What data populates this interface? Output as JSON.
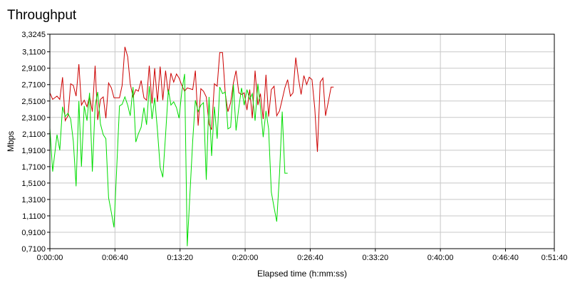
{
  "chart_data": {
    "type": "line",
    "title": "Throughput",
    "xlabel": "Elapsed time (h:mm:ss)",
    "ylabel": "Mbps",
    "grid": true,
    "xlim_seconds": [
      0,
      3100
    ],
    "ylim": [
      0.71,
      3.3245
    ],
    "x_ticks": [
      {
        "value": 0,
        "label": "0:00:00"
      },
      {
        "value": 400,
        "label": "0:06:40"
      },
      {
        "value": 800,
        "label": "0:13:20"
      },
      {
        "value": 1200,
        "label": "0:20:00"
      },
      {
        "value": 1600,
        "label": "0:26:40"
      },
      {
        "value": 2000,
        "label": "0:33:20"
      },
      {
        "value": 2400,
        "label": "0:40:00"
      },
      {
        "value": 2800,
        "label": "0:46:40"
      },
      {
        "value": 3100,
        "label": "0:51:40"
      }
    ],
    "y_ticks": [
      {
        "value": 0.71,
        "label": "0,7100"
      },
      {
        "value": 0.91,
        "label": "0,9100"
      },
      {
        "value": 1.11,
        "label": "1,1100"
      },
      {
        "value": 1.31,
        "label": "1,3100"
      },
      {
        "value": 1.51,
        "label": "1,5100"
      },
      {
        "value": 1.71,
        "label": "1,7100"
      },
      {
        "value": 1.91,
        "label": "1,9100"
      },
      {
        "value": 2.11,
        "label": "2,1100"
      },
      {
        "value": 2.31,
        "label": "2,3100"
      },
      {
        "value": 2.51,
        "label": "2,5100"
      },
      {
        "value": 2.71,
        "label": "2,7100"
      },
      {
        "value": 2.91,
        "label": "2,9100"
      },
      {
        "value": 3.11,
        "label": "3,1100"
      },
      {
        "value": 3.3245,
        "label": "3,3245"
      }
    ],
    "series": [
      {
        "color": "#cc0000",
        "points": [
          [
            0,
            2.61
          ],
          [
            17,
            2.53
          ],
          [
            44,
            2.57
          ],
          [
            61,
            2.53
          ],
          [
            78,
            2.8
          ],
          [
            94,
            2.27
          ],
          [
            111,
            2.33
          ],
          [
            128,
            2.72
          ],
          [
            144,
            2.7
          ],
          [
            161,
            2.57
          ],
          [
            178,
            2.96
          ],
          [
            194,
            2.46
          ],
          [
            211,
            2.52
          ],
          [
            228,
            2.44
          ],
          [
            244,
            2.57
          ],
          [
            261,
            2.38
          ],
          [
            278,
            2.94
          ],
          [
            294,
            2.28
          ],
          [
            311,
            2.53
          ],
          [
            328,
            2.56
          ],
          [
            344,
            2.3
          ],
          [
            361,
            2.73
          ],
          [
            378,
            2.67
          ],
          [
            394,
            2.55
          ],
          [
            411,
            2.55
          ],
          [
            428,
            2.55
          ],
          [
            444,
            2.7
          ],
          [
            461,
            3.17
          ],
          [
            478,
            3.05
          ],
          [
            494,
            2.72
          ],
          [
            511,
            2.56
          ],
          [
            528,
            2.65
          ],
          [
            544,
            2.63
          ],
          [
            561,
            2.76
          ],
          [
            578,
            2.55
          ],
          [
            594,
            2.52
          ],
          [
            611,
            2.94
          ],
          [
            628,
            2.48
          ],
          [
            644,
            2.91
          ],
          [
            661,
            2.5
          ],
          [
            678,
            2.93
          ],
          [
            694,
            2.52
          ],
          [
            711,
            2.88
          ],
          [
            728,
            2.59
          ],
          [
            744,
            2.85
          ],
          [
            761,
            2.74
          ],
          [
            778,
            2.84
          ],
          [
            794,
            2.79
          ],
          [
            811,
            2.7
          ],
          [
            828,
            2.63
          ],
          [
            844,
            2.67
          ],
          [
            861,
            2.66
          ],
          [
            878,
            2.65
          ],
          [
            894,
            2.88
          ],
          [
            911,
            2.21
          ],
          [
            928,
            2.66
          ],
          [
            944,
            2.63
          ],
          [
            961,
            2.56
          ],
          [
            978,
            2.23
          ],
          [
            994,
            2.16
          ],
          [
            1011,
            2.72
          ],
          [
            1028,
            2.69
          ],
          [
            1044,
            3.1
          ],
          [
            1061,
            3.1
          ],
          [
            1078,
            2.6
          ],
          [
            1094,
            2.38
          ],
          [
            1111,
            2.49
          ],
          [
            1128,
            2.73
          ],
          [
            1144,
            2.88
          ],
          [
            1161,
            2.61
          ],
          [
            1178,
            2.59
          ],
          [
            1194,
            2.61
          ],
          [
            1211,
            2.4
          ],
          [
            1228,
            2.65
          ],
          [
            1244,
            2.3
          ],
          [
            1261,
            2.88
          ],
          [
            1278,
            2.46
          ],
          [
            1294,
            2.6
          ],
          [
            1311,
            2.29
          ],
          [
            1328,
            2.83
          ],
          [
            1344,
            2.32
          ],
          [
            1361,
            2.65
          ],
          [
            1378,
            2.69
          ],
          [
            1394,
            2.33
          ],
          [
            1411,
            2.39
          ],
          [
            1428,
            2.53
          ],
          [
            1444,
            2.67
          ],
          [
            1461,
            2.77
          ],
          [
            1478,
            2.57
          ],
          [
            1494,
            2.61
          ],
          [
            1511,
            3.04
          ],
          [
            1528,
            2.78
          ],
          [
            1544,
            2.59
          ],
          [
            1561,
            2.82
          ],
          [
            1578,
            2.71
          ],
          [
            1594,
            2.8
          ],
          [
            1611,
            2.77
          ],
          [
            1628,
            2.42
          ],
          [
            1644,
            1.89
          ],
          [
            1661,
            2.74
          ],
          [
            1678,
            2.79
          ],
          [
            1694,
            2.33
          ],
          [
            1711,
            2.5
          ],
          [
            1728,
            2.68
          ],
          [
            1744,
            2.68
          ]
        ]
      },
      {
        "color": "#00dd00",
        "points": [
          [
            0,
            2.18
          ],
          [
            17,
            1.65
          ],
          [
            44,
            2.1
          ],
          [
            61,
            1.91
          ],
          [
            78,
            2.44
          ],
          [
            94,
            2.32
          ],
          [
            111,
            2.36
          ],
          [
            128,
            2.29
          ],
          [
            144,
            2.02
          ],
          [
            161,
            1.47
          ],
          [
            178,
            2.51
          ],
          [
            194,
            1.71
          ],
          [
            211,
            2.45
          ],
          [
            228,
            2.27
          ],
          [
            244,
            2.61
          ],
          [
            261,
            1.65
          ],
          [
            278,
            2.45
          ],
          [
            294,
            2.62
          ],
          [
            311,
            2.23
          ],
          [
            328,
            2.1
          ],
          [
            344,
            2.05
          ],
          [
            361,
            1.33
          ],
          [
            378,
            1.15
          ],
          [
            394,
            0.97
          ],
          [
            411,
            1.71
          ],
          [
            428,
            2.45
          ],
          [
            444,
            2.47
          ],
          [
            461,
            2.56
          ],
          [
            478,
            2.46
          ],
          [
            494,
            2.33
          ],
          [
            511,
            2.68
          ],
          [
            528,
            2.01
          ],
          [
            544,
            2.11
          ],
          [
            561,
            2.19
          ],
          [
            578,
            2.43
          ],
          [
            594,
            2.22
          ],
          [
            611,
            2.69
          ],
          [
            628,
            2.29
          ],
          [
            644,
            2.55
          ],
          [
            661,
            2.15
          ],
          [
            678,
            1.7
          ],
          [
            694,
            1.58
          ],
          [
            711,
            2.1
          ],
          [
            728,
            2.65
          ],
          [
            744,
            2.46
          ],
          [
            761,
            2.5
          ],
          [
            778,
            2.43
          ],
          [
            794,
            2.3
          ],
          [
            811,
            2.63
          ],
          [
            828,
            2.84
          ],
          [
            844,
            0.74
          ],
          [
            861,
            1.38
          ],
          [
            878,
            2.03
          ],
          [
            894,
            2.52
          ],
          [
            911,
            2.38
          ],
          [
            928,
            2.46
          ],
          [
            944,
            2.49
          ],
          [
            961,
            1.55
          ],
          [
            978,
            2.56
          ],
          [
            994,
            1.84
          ],
          [
            1011,
            2.44
          ],
          [
            1028,
            2.05
          ],
          [
            1044,
            2.68
          ],
          [
            1061,
            2.6
          ],
          [
            1078,
            2.62
          ],
          [
            1094,
            2.17
          ],
          [
            1111,
            2.19
          ],
          [
            1128,
            2.71
          ],
          [
            1144,
            2.15
          ],
          [
            1161,
            2.43
          ],
          [
            1178,
            2.67
          ],
          [
            1194,
            2.46
          ],
          [
            1211,
            2.65
          ],
          [
            1228,
            2.53
          ],
          [
            1244,
            2.6
          ],
          [
            1261,
            2.27
          ],
          [
            1278,
            2.72
          ],
          [
            1294,
            2.44
          ],
          [
            1311,
            2.07
          ],
          [
            1328,
            2.39
          ],
          [
            1344,
            2.17
          ],
          [
            1361,
            1.4
          ],
          [
            1378,
            1.21
          ],
          [
            1394,
            1.04
          ],
          [
            1411,
            1.62
          ],
          [
            1428,
            2.38
          ],
          [
            1444,
            1.63
          ],
          [
            1461,
            1.63
          ]
        ]
      }
    ]
  }
}
